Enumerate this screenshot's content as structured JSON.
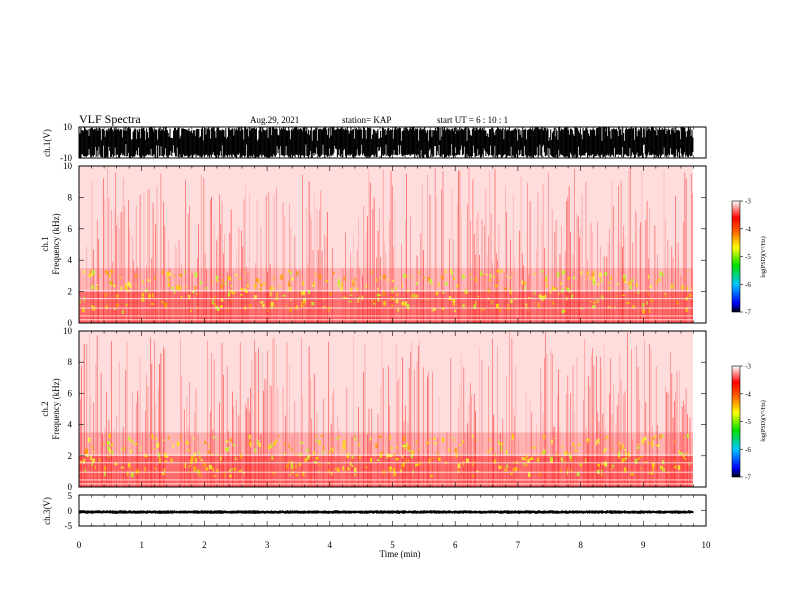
{
  "header": {
    "title": "VLF Spectra",
    "date": "Aug.29, 2021",
    "station": "station= KAP",
    "start": "start UT =  6 : 10 : 1"
  },
  "colors": {
    "waveform": "#000000",
    "spectrogram_high": "#ff2a2a",
    "spectrogram_peak": "#ffe600",
    "background": "#ffffff"
  },
  "chart_data": [
    {
      "type": "line",
      "panel": "ch1-waveform",
      "ylabel": "ch.1(V)",
      "ylim": [
        -10,
        10
      ],
      "yticks": [
        "10",
        "-10"
      ],
      "xlim": [
        0,
        10
      ],
      "description_values": "saturated broadband signal spanning most of the -10 to 10 V range"
    },
    {
      "type": "heatmap",
      "panel": "ch1-spectrogram",
      "ylabel": "ch.1\nFrequency (kHz)",
      "ylabel_lines": [
        "ch.1",
        "Frequency (kHz)"
      ],
      "ylim": [
        0,
        10
      ],
      "yticks": [
        "0",
        "2",
        "4",
        "6",
        "8",
        "10"
      ],
      "xlim": [
        0,
        10
      ],
      "band_intensity": [
        {
          "freq_khz": [
            0,
            0.6
          ],
          "level": 0.95
        },
        {
          "freq_khz": [
            0.6,
            2.0
          ],
          "level": 0.85
        },
        {
          "freq_khz": [
            2.0,
            3.5
          ],
          "level": 0.55
        },
        {
          "freq_khz": [
            3.5,
            10
          ],
          "level": 0.2
        }
      ],
      "colorbar": {
        "label": "log(PSD)(V²/Hz)",
        "range": [
          -7,
          -3
        ],
        "ticks": [
          "-3",
          "-4",
          "-5",
          "-6",
          "-7"
        ]
      }
    },
    {
      "type": "heatmap",
      "panel": "ch2-spectrogram",
      "ylabel": "ch.2\nFrequency (kHz)",
      "ylabel_lines": [
        "ch.2",
        "Frequency (kHz)"
      ],
      "ylim": [
        0,
        10
      ],
      "yticks": [
        "0",
        "2",
        "4",
        "6",
        "8",
        "10"
      ],
      "xlim": [
        0,
        10
      ],
      "band_intensity": [
        {
          "freq_khz": [
            0,
            0.6
          ],
          "level": 0.95
        },
        {
          "freq_khz": [
            0.6,
            2.0
          ],
          "level": 0.9
        },
        {
          "freq_khz": [
            2.0,
            3.5
          ],
          "level": 0.6
        },
        {
          "freq_khz": [
            3.5,
            10
          ],
          "level": 0.2
        }
      ],
      "colorbar": {
        "label": "log(PSD)(V²/Hz)",
        "range": [
          -7,
          -3
        ],
        "ticks": [
          "-3",
          "-4",
          "-5",
          "-6",
          "-7"
        ]
      }
    },
    {
      "type": "line",
      "panel": "ch3-waveform",
      "ylabel": "ch.3(V)",
      "ylim": [
        -5,
        5
      ],
      "yticks": [
        "5",
        "0",
        "-5"
      ],
      "xlim": [
        0,
        10
      ],
      "mean_value": -0.5,
      "amplitude": 0.6
    }
  ],
  "xaxis": {
    "label": "Time (min)",
    "range": [
      0,
      10
    ],
    "ticks": [
      "0",
      "1",
      "2",
      "3",
      "4",
      "5",
      "6",
      "7",
      "8",
      "9",
      "10"
    ]
  }
}
